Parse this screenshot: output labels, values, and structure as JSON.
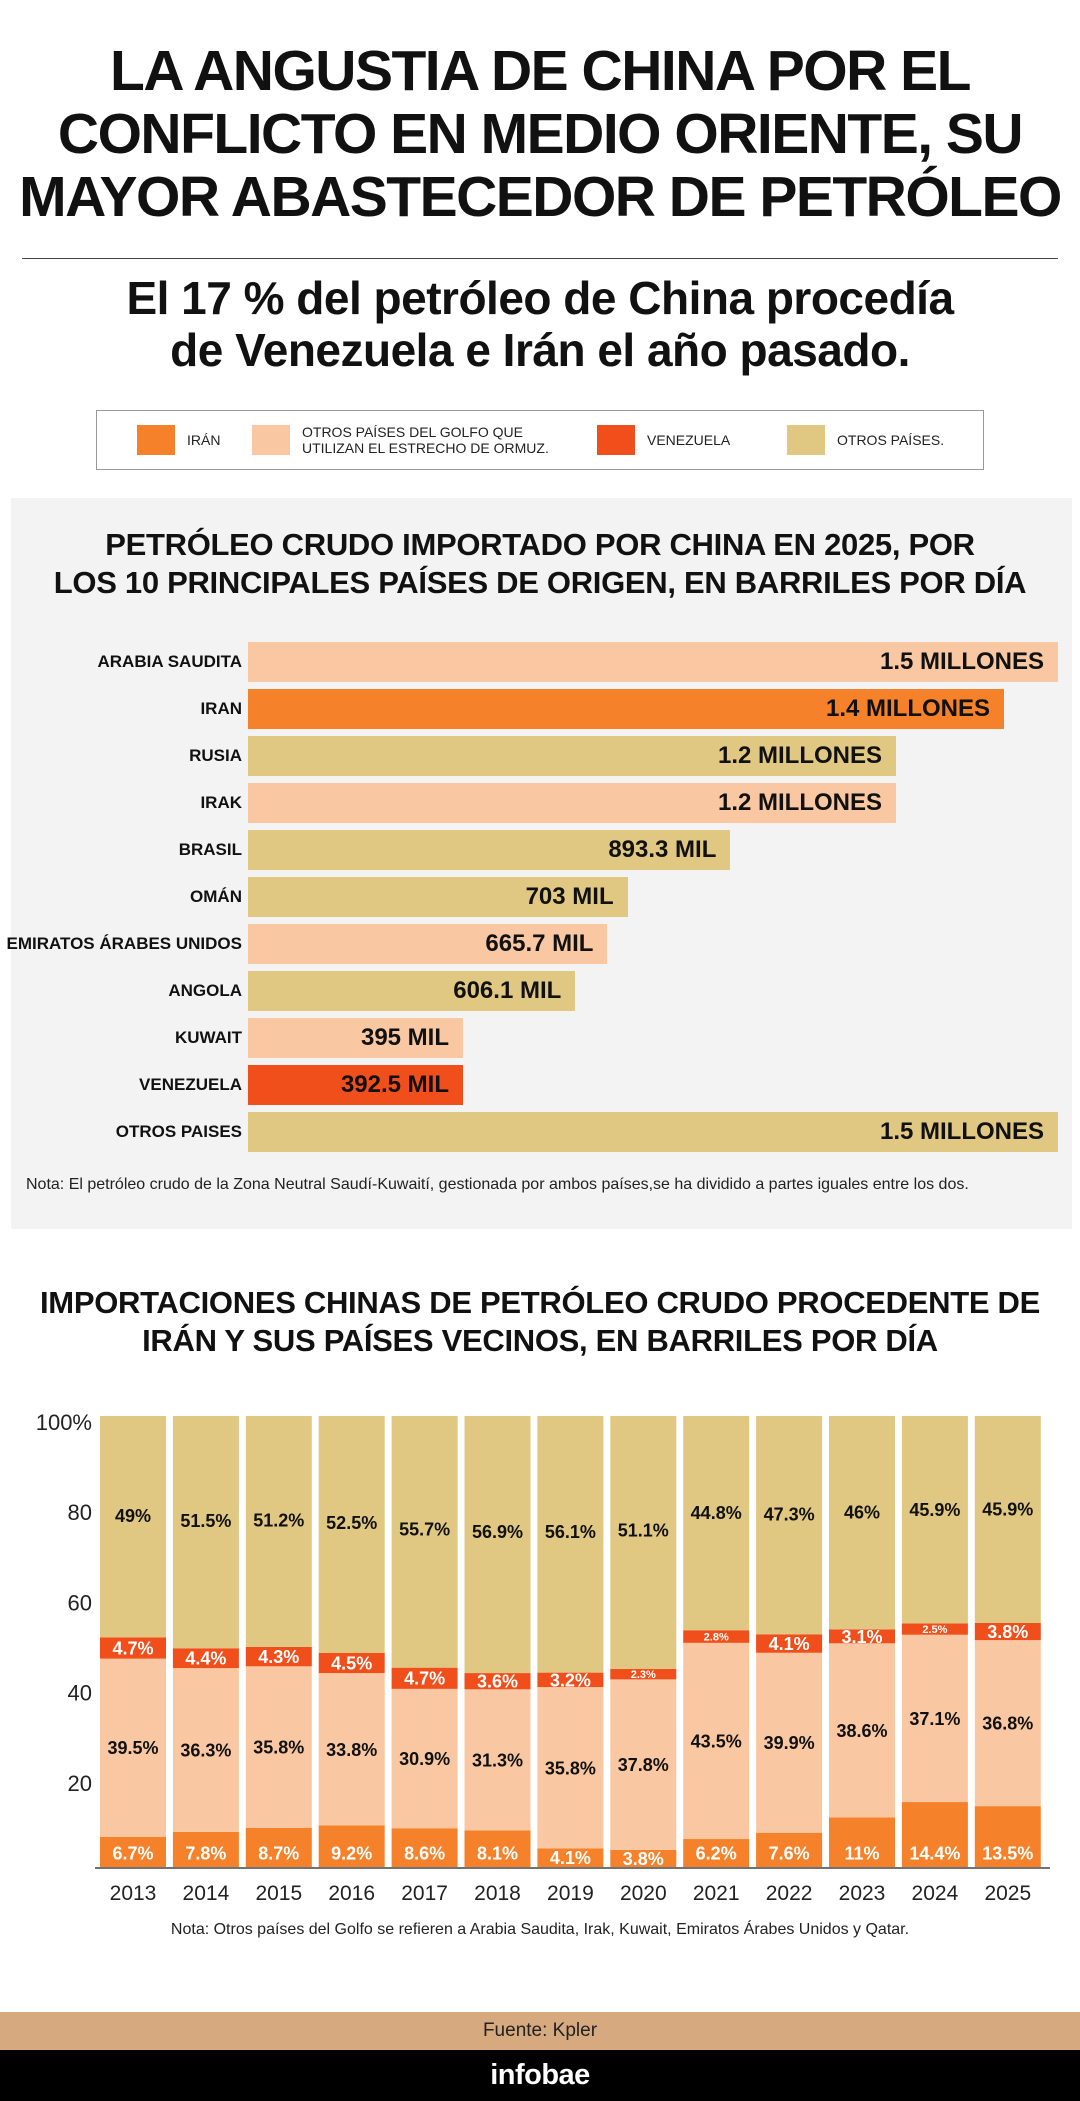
{
  "title": {
    "lines": [
      "LA ANGUSTIA DE CHINA POR EL",
      "CONFLICTO EN MEDIO ORIENTE, SU",
      "MAYOR ABASTECEDOR DE PETRÓLEO"
    ]
  },
  "subtitle": {
    "lines": [
      "El 17 % del petróleo de China procedía",
      "de Venezuela e Irán el año pasado."
    ]
  },
  "legend": [
    {
      "label": "IRÁN",
      "color": "#f5812a"
    },
    {
      "label": "OTROS PAÍSES DEL GOLFO QUE UTILIZAN EL ESTRECHO DE ORMUZ.",
      "color": "#f9c8a2"
    },
    {
      "label": "VENEZUELA",
      "color": "#f04e1a"
    },
    {
      "label": "OTROS PAÍSES.",
      "color": "#e0c882"
    }
  ],
  "chart_data": [
    {
      "type": "bar",
      "orientation": "horizontal",
      "title": "PETRÓLEO CRUDO IMPORTADO POR CHINA EN 2025, POR LOS 10 PRINCIPALES PAÍSES DE ORIGEN, EN BARRILES POR DÍA",
      "title_lines": [
        "PETRÓLEO CRUDO IMPORTADO POR CHINA EN 2025, POR",
        "LOS 10 PRINCIPALES PAÍSES DE ORIGEN, EN BARRILES POR DÍA"
      ],
      "categories": [
        "ARABIA SAUDITA",
        "IRAN",
        "RUSIA",
        "IRAK",
        "BRASIL",
        "OMÁN",
        "EMIRATOS ÁRABES UNIDOS",
        "ANGOLA",
        "KUWAIT",
        "VENEZUELA",
        "OTROS PAISES"
      ],
      "values": [
        1500000,
        1400000,
        1200000,
        1200000,
        893300,
        703000,
        665700,
        606100,
        395000,
        392500,
        1500000
      ],
      "value_labels": [
        "1.5 MILLONES",
        "1.4 MILLONES",
        "1.2 MILLONES",
        "1.2 MILLONES",
        "893.3 MIL",
        "703 MIL",
        "665.7 MIL",
        "606.1 MIL",
        "395 MIL",
        "392.5 MIL",
        "1.5 MILLONES"
      ],
      "groups": [
        "golfo",
        "iran",
        "otros",
        "golfo",
        "otros",
        "otros",
        "golfo",
        "otros",
        "golfo",
        "venezuela",
        "otros"
      ],
      "xlim": [
        0,
        1500000
      ],
      "note": "Nota: El petróleo crudo de la Zona Neutral Saudí-Kuwaití, gestionada por ambos países,se ha dividido a partes iguales entre los dos."
    },
    {
      "type": "bar",
      "stacked": true,
      "title": "IMPORTACIONES CHINAS DE PETRÓLEO CRUDO PROCEDENTE DE IRÁN Y SUS PAÍSES VECINOS, EN BARRILES POR DÍA",
      "title_lines": [
        "IMPORTACIONES CHINAS DE PETRÓLEO CRUDO PROCEDENTE DE",
        "IRÁN Y SUS PAÍSES VECINOS, EN BARRILES POR DÍA"
      ],
      "categories": [
        "2013",
        "2014",
        "2015",
        "2016",
        "2017",
        "2018",
        "2019",
        "2020",
        "2021",
        "2022",
        "2023",
        "2024",
        "2025"
      ],
      "series": [
        {
          "key": "iran",
          "values": [
            6.7,
            7.8,
            8.7,
            9.2,
            8.6,
            8.1,
            4.1,
            3.8,
            6.2,
            7.6,
            11,
            14.4,
            13.5
          ]
        },
        {
          "key": "golfo",
          "values": [
            39.5,
            36.3,
            35.8,
            33.8,
            30.9,
            31.3,
            35.8,
            37.8,
            43.5,
            39.9,
            38.6,
            37.1,
            36.8
          ]
        },
        {
          "key": "venezuela",
          "values": [
            4.7,
            4.4,
            4.3,
            4.5,
            4.7,
            3.6,
            3.2,
            2.3,
            2.8,
            4.1,
            3.1,
            2.5,
            3.8
          ]
        },
        {
          "key": "otros",
          "values": [
            49,
            51.5,
            51.2,
            52.5,
            55.7,
            56.9,
            56.1,
            51.1,
            44.8,
            47.3,
            46,
            45.9,
            45.9
          ]
        }
      ],
      "yticks": [
        "100%",
        "80",
        "60",
        "40",
        "20"
      ],
      "ylim": [
        0,
        100
      ],
      "note": "Nota: Otros países del Golfo se refieren a Arabia Saudita, Irak, Kuwait, Emiratos Árabes Unidos y Qatar."
    }
  ],
  "colors": {
    "iran": "#f5812a",
    "golfo": "#f9c8a2",
    "venezuela": "#f04e1a",
    "otros": "#e0c882"
  },
  "footer": {
    "source": "Fuente: Kpler",
    "brand": "infobae"
  }
}
